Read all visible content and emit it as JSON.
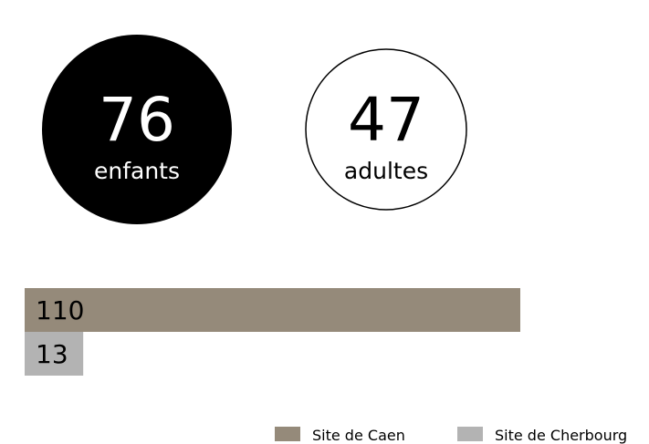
{
  "stats": [
    {
      "value": 76,
      "label": "enfants"
    },
    {
      "value": 47,
      "label": "adultes"
    }
  ],
  "chart_data": {
    "type": "bar",
    "orientation": "horizontal",
    "series": [
      {
        "name": "Site de Caen",
        "color": "#958a7a",
        "values": [
          110
        ]
      },
      {
        "name": "Site de Cherbourg",
        "color": "#b3b3b3",
        "values": [
          13
        ]
      }
    ]
  }
}
